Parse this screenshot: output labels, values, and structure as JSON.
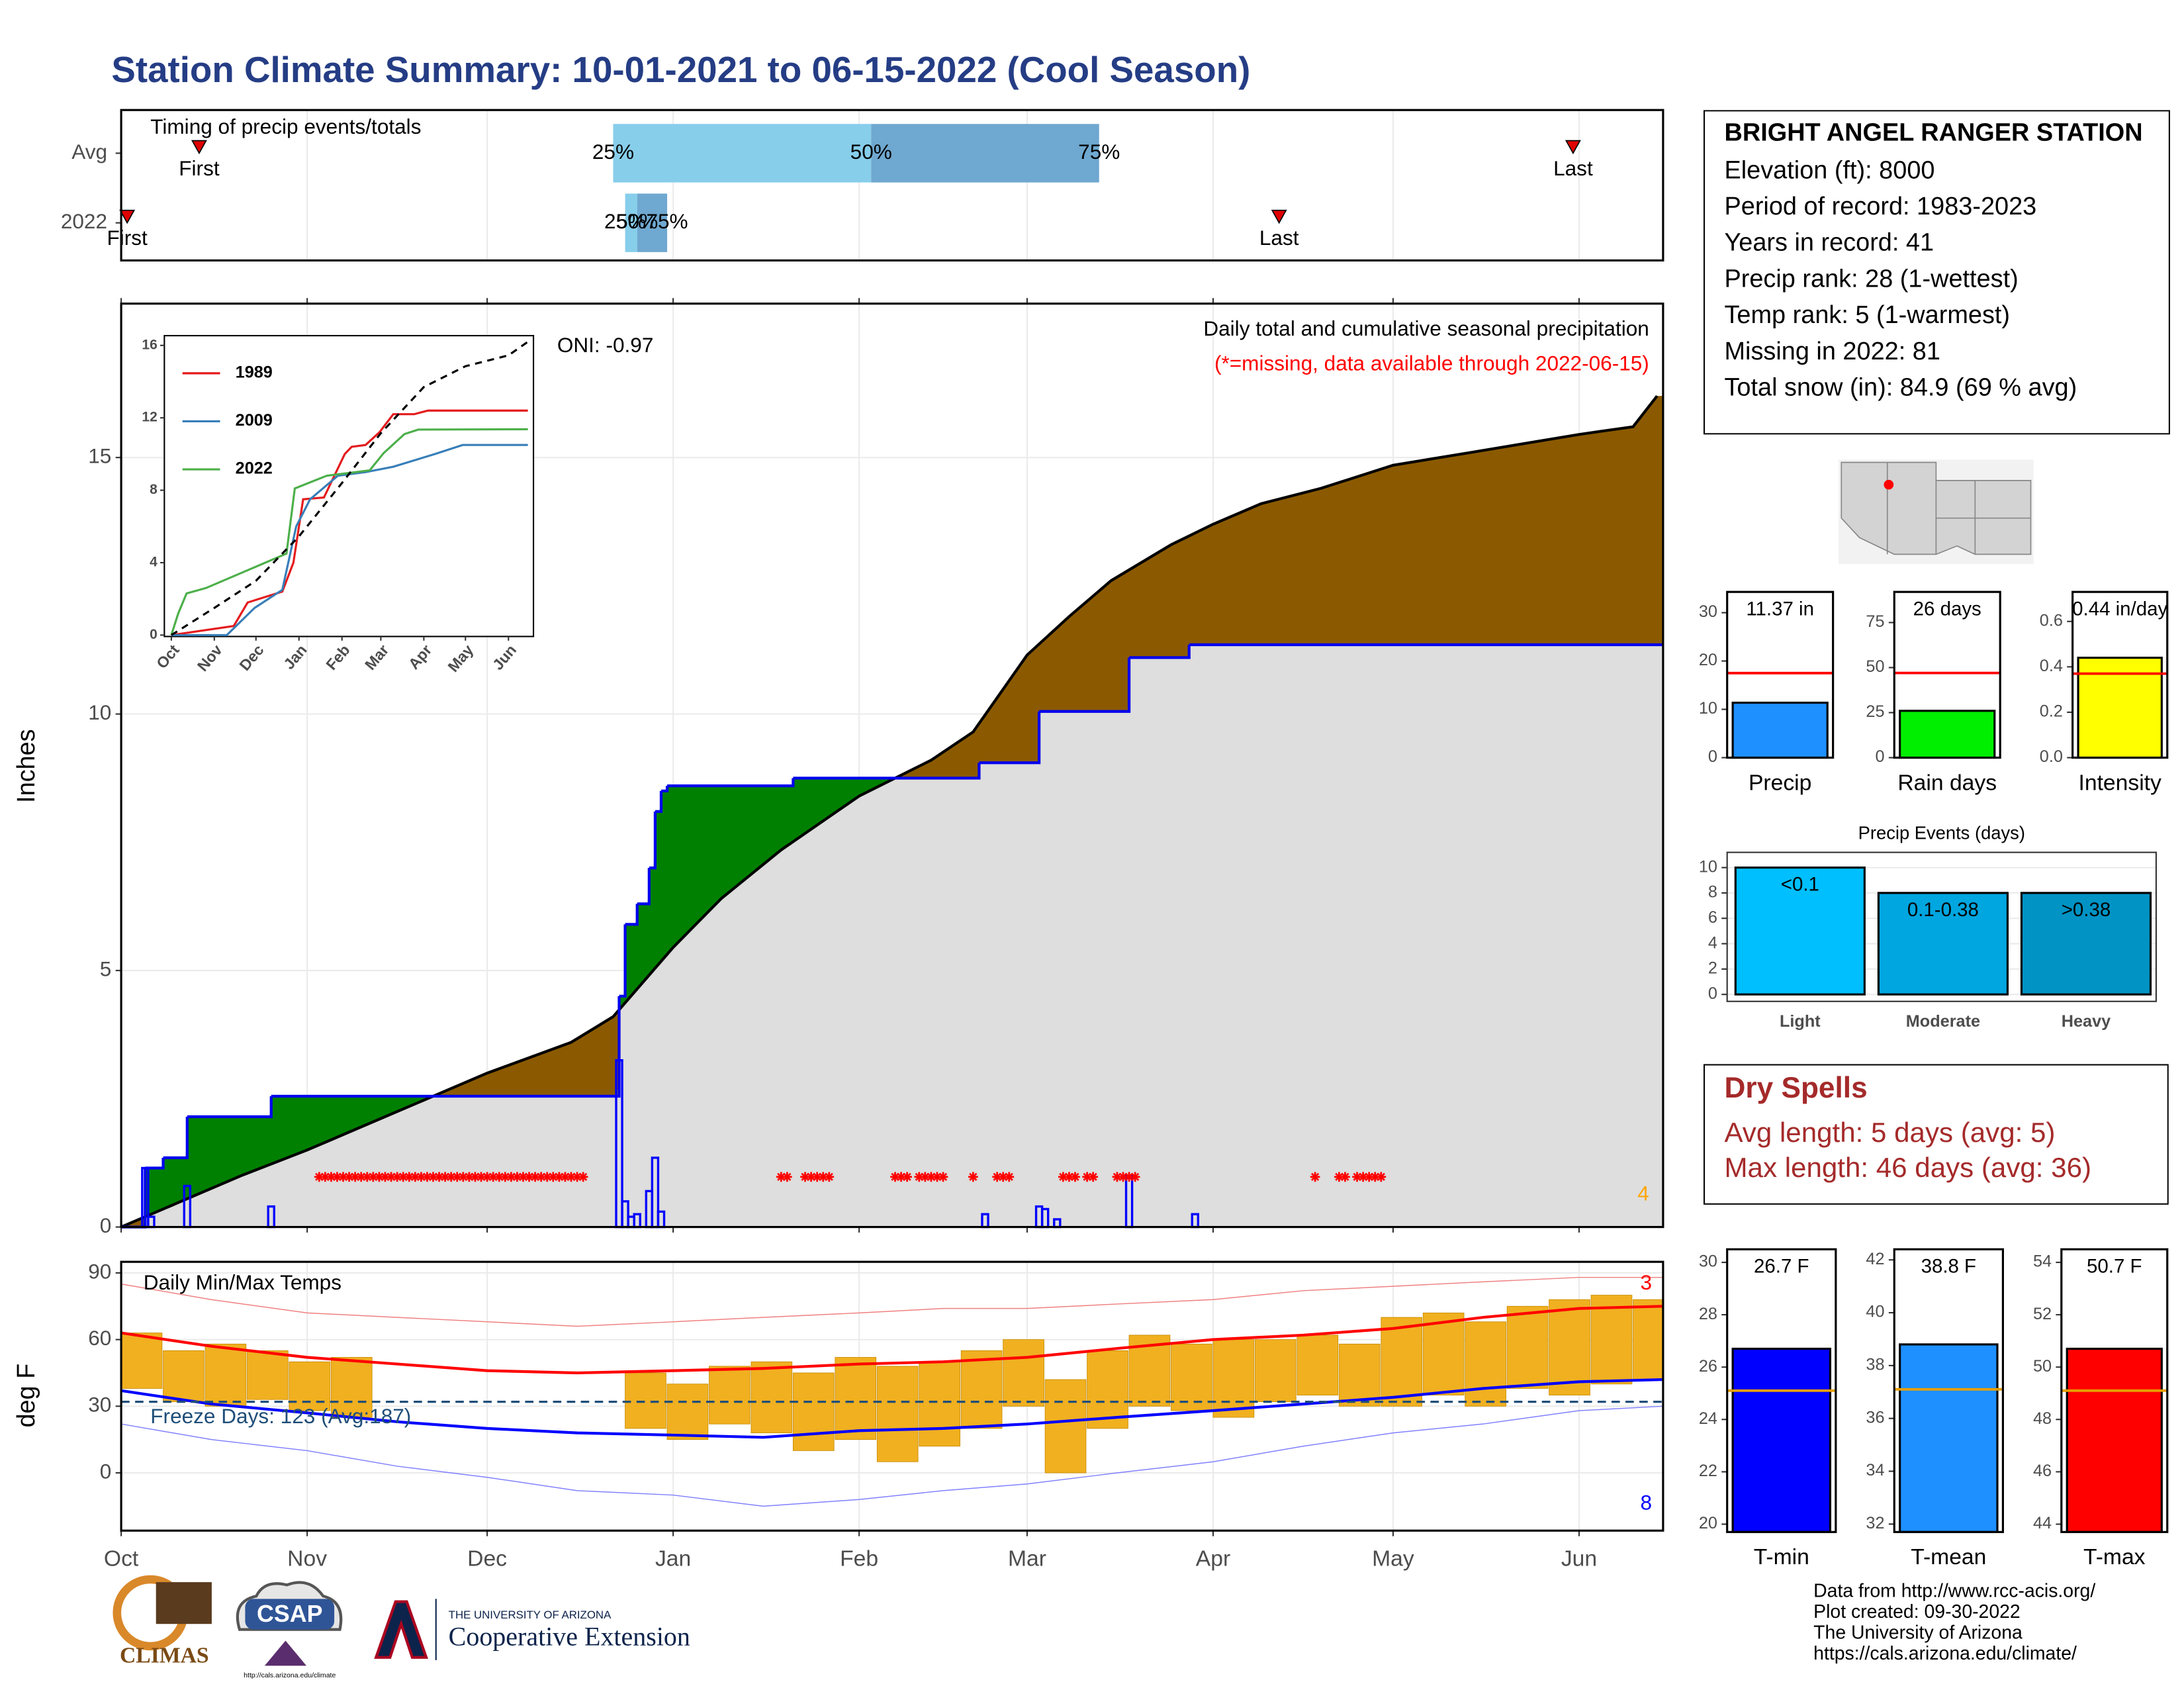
{
  "title": "Station Climate Summary: 10-01-2021 to 06-15-2022 (Cool Season)",
  "chart_data": [
    {
      "type": "timing",
      "title": "Timing of precip events/totals",
      "categories": [
        "Avg",
        "2022"
      ],
      "first": [
        13,
        1
      ],
      "last": [
        242,
        193
      ],
      "q25": [
        82,
        84
      ],
      "q50": [
        125,
        86
      ],
      "q75": [
        163,
        91
      ],
      "first_label": "First",
      "last_label": "Last",
      "quartile_labels": [
        "25%",
        "50%",
        "75%"
      ],
      "xlim": [
        0,
        257
      ],
      "low_color": "#87ceeb",
      "high_color": "#6fa8d0",
      "marker_color": "#e00000"
    },
    {
      "type": "cumulative",
      "y_label": "Inches",
      "annotations": [
        "Daily total and cumulative seasonal precipitation",
        "(*=missing, data available through 2022-06-15)",
        "ONI: -0.97"
      ],
      "corner_count": 4,
      "xlim": [
        0,
        257
      ],
      "xticks": [
        0,
        31,
        61,
        92,
        123,
        151,
        182,
        212,
        243
      ],
      "ylim": [
        0,
        18
      ],
      "yticks": [
        0,
        5,
        10,
        15
      ],
      "grid": true,
      "series": [
        {
          "color": "#000000",
          "x": [
            0,
            10,
            20,
            31,
            45,
            61,
            75,
            82,
            92,
            100,
            110,
            123,
            135,
            142,
            151,
            158,
            165,
            175,
            182,
            190,
            200,
            212,
            225,
            243,
            252,
            256
          ],
          "values": [
            0,
            0.5,
            1.0,
            1.5,
            2.2,
            3.0,
            3.6,
            4.1,
            5.45,
            6.4,
            7.35,
            8.4,
            9.1,
            9.65,
            11.15,
            11.9,
            12.6,
            13.3,
            13.7,
            14.1,
            14.4,
            14.85,
            15.1,
            15.45,
            15.6,
            16.2
          ]
        },
        {
          "color": "#0000ee",
          "x": [
            0,
            4,
            7,
            11,
            25,
            83,
            84,
            86,
            88,
            89,
            90,
            91,
            112,
            143,
            153,
            168,
            178
          ],
          "values": [
            0,
            1.15,
            1.35,
            2.15,
            2.55,
            4.5,
            5.9,
            6.3,
            7.0,
            8.1,
            8.5,
            8.6,
            8.75,
            9.05,
            10.05,
            11.1,
            11.35
          ]
        }
      ],
      "daily": {
        "color": "#0000ff",
        "x": [
          4,
          5,
          11,
          25,
          83,
          84,
          85,
          86,
          88,
          89,
          90,
          144,
          153,
          154,
          156,
          168,
          179
        ],
        "values": [
          1.15,
          0.2,
          0.8,
          0.4,
          3.25,
          0.5,
          0.2,
          0.25,
          0.7,
          1.35,
          0.3,
          0.25,
          0.4,
          0.35,
          0.15,
          1.0,
          0.25
        ]
      },
      "missing_days": [
        33,
        34,
        35,
        36,
        37,
        38,
        39,
        40,
        41,
        42,
        43,
        44,
        45,
        46,
        47,
        48,
        49,
        50,
        51,
        52,
        53,
        54,
        55,
        56,
        57,
        58,
        59,
        60,
        61,
        62,
        63,
        64,
        65,
        66,
        67,
        68,
        69,
        70,
        71,
        72,
        73,
        74,
        75,
        76,
        77,
        110,
        111,
        114,
        115,
        116,
        117,
        118,
        129,
        130,
        131,
        133,
        134,
        135,
        136,
        137,
        142,
        146,
        147,
        148,
        157,
        158,
        159,
        161,
        162,
        166,
        167,
        168,
        169,
        199,
        203,
        204,
        206,
        207,
        208,
        209,
        210
      ],
      "above_color": "#008000",
      "below_color": "#8b5a00",
      "base_color": "#dedede",
      "missing_color": "#ff0000"
    },
    {
      "type": "line",
      "xlim": [
        0,
        257
      ],
      "xticks": [
        {
          "value": 0,
          "label": "Oct"
        },
        {
          "value": 31,
          "label": "Nov"
        },
        {
          "value": 61,
          "label": "Dec"
        },
        {
          "value": 92,
          "label": "Jan"
        },
        {
          "value": 123,
          "label": "Feb"
        },
        {
          "value": 151,
          "label": "Mar"
        },
        {
          "value": 182,
          "label": "Apr"
        },
        {
          "value": 212,
          "label": "May"
        },
        {
          "value": 243,
          "label": "Jun"
        }
      ],
      "ylim": [
        0,
        16.5
      ],
      "yticks": [
        0,
        4,
        8,
        12,
        16
      ],
      "series": [
        {
          "name": "1989",
          "color": "#e41a1c",
          "x": [
            0,
            45,
            55,
            80,
            88,
            95,
            110,
            125,
            130,
            140,
            150,
            160,
            175,
            185,
            257
          ],
          "values": [
            0,
            0.5,
            1.8,
            2.4,
            4,
            7.5,
            7.6,
            10,
            10.4,
            10.5,
            11.2,
            12.2,
            12.2,
            12.4,
            12.4
          ]
        },
        {
          "name": "2009",
          "color": "#377eb8",
          "x": [
            0,
            40,
            60,
            80,
            90,
            100,
            120,
            140,
            160,
            190,
            210,
            257
          ],
          "values": [
            0,
            0,
            1.5,
            2.5,
            6,
            7.5,
            8.8,
            9,
            9.3,
            10,
            10.5,
            10.5
          ]
        },
        {
          "name": "2022",
          "color": "#4daf4a",
          "x": [
            0,
            5,
            11,
            25,
            83,
            89,
            112,
            143,
            153,
            168,
            178,
            257
          ],
          "values": [
            0,
            1.2,
            2.3,
            2.6,
            4.5,
            8.1,
            8.8,
            9.1,
            10.05,
            11.1,
            11.35,
            11.37
          ]
        },
        {
          "color": "#000000",
          "dashed": true,
          "x": [
            0,
            31,
            61,
            92,
            123,
            151,
            182,
            212,
            243,
            257
          ],
          "values": [
            0,
            1.5,
            3,
            5.45,
            8.4,
            11.15,
            13.7,
            14.85,
            15.45,
            16.2
          ]
        }
      ]
    },
    {
      "type": "temperature",
      "title": "Daily Min/Max Temps",
      "y_label": "deg F",
      "annotation": "Freeze Days: 123 (Avg:187)",
      "record_high_count": 3,
      "record_low_count": 8,
      "freeze_line": 32,
      "xlim": [
        0,
        257
      ],
      "xticks": [
        {
          "value": 0,
          "label": "Oct"
        },
        {
          "value": 31,
          "label": "Nov"
        },
        {
          "value": 61,
          "label": "Dec"
        },
        {
          "value": 92,
          "label": "Jan"
        },
        {
          "value": 123,
          "label": "Feb"
        },
        {
          "value": 151,
          "label": "Mar"
        },
        {
          "value": 182,
          "label": "Apr"
        },
        {
          "value": 212,
          "label": "May"
        },
        {
          "value": 243,
          "label": "Jun"
        }
      ],
      "ylim": [
        -26,
        95
      ],
      "yticks": [
        0,
        30,
        60,
        90
      ],
      "grid": true,
      "series": [
        {
          "color": "#ff0000",
          "width": 2,
          "x": [
            0,
            15,
            31,
            46,
            61,
            76,
            92,
            107,
            123,
            137,
            151,
            166,
            182,
            197,
            212,
            227,
            243,
            257
          ],
          "values": [
            63,
            57,
            52,
            49,
            46,
            45,
            46,
            47,
            49,
            50,
            52,
            56,
            60,
            62,
            65,
            70,
            74,
            75
          ]
        },
        {
          "color": "#0000ff",
          "width": 2,
          "x": [
            0,
            15,
            31,
            46,
            61,
            76,
            92,
            107,
            123,
            137,
            151,
            166,
            182,
            197,
            212,
            227,
            243,
            257
          ],
          "values": [
            37,
            31,
            27,
            23,
            20,
            18,
            17,
            16,
            19,
            20,
            22,
            25,
            28,
            31,
            34,
            38,
            41,
            42
          ]
        },
        {
          "color": "#f08080",
          "width": 0.7,
          "x": [
            0,
            15,
            31,
            46,
            61,
            76,
            92,
            107,
            123,
            137,
            151,
            166,
            182,
            197,
            212,
            227,
            243,
            257
          ],
          "values": [
            85,
            78,
            72,
            70,
            68,
            66,
            68,
            70,
            72,
            74,
            74,
            76,
            78,
            82,
            84,
            86,
            88,
            88
          ]
        },
        {
          "color": "#8080ff",
          "width": 0.7,
          "x": [
            0,
            15,
            31,
            46,
            61,
            76,
            92,
            107,
            123,
            137,
            151,
            166,
            182,
            197,
            212,
            227,
            243,
            257
          ],
          "values": [
            22,
            15,
            10,
            3,
            -2,
            -8,
            -10,
            -15,
            -12,
            -8,
            -5,
            0,
            5,
            12,
            18,
            22,
            28,
            30
          ]
        }
      ],
      "bars": {
        "color": "#f0b020",
        "width_days": 7,
        "x": [
          0,
          7,
          14,
          21,
          28,
          35,
          84,
          91,
          98,
          105,
          112,
          119,
          126,
          133,
          140,
          147,
          154,
          161,
          168,
          175,
          182,
          189,
          196,
          203,
          210,
          217,
          224,
          231,
          238,
          245,
          252
        ],
        "min": [
          38,
          32,
          30,
          33,
          28,
          25,
          20,
          15,
          22,
          18,
          10,
          15,
          5,
          12,
          20,
          30,
          0,
          20,
          30,
          28,
          25,
          32,
          35,
          30,
          30,
          35,
          30,
          38,
          35,
          40,
          42
        ],
        "max": [
          63,
          55,
          58,
          55,
          50,
          52,
          45,
          40,
          48,
          50,
          45,
          52,
          48,
          50,
          55,
          60,
          42,
          55,
          62,
          58,
          60,
          60,
          62,
          58,
          70,
          72,
          68,
          75,
          78,
          80,
          78
        ]
      }
    },
    {
      "type": "gauge",
      "title": "Precip",
      "value": 11.37,
      "value_label": "11.37 in",
      "average": 17.5,
      "color": "#1e90ff",
      "average_color": "#ff0000",
      "ylim": [
        0,
        34.3
      ],
      "yticks": [
        0,
        10,
        20,
        30
      ]
    },
    {
      "type": "gauge",
      "title": "Rain days",
      "value": 26,
      "value_label": "26 days",
      "average": 47,
      "color": "#00ee00",
      "average_color": "#ff0000",
      "ylim": [
        0,
        92
      ],
      "yticks": [
        0,
        25,
        50,
        75
      ]
    },
    {
      "type": "gauge",
      "title": "Intensity",
      "value": 0.44,
      "value_label": "0.44 in/day",
      "average": 0.37,
      "color": "#ffff00",
      "average_color": "#ff0000",
      "ylim": [
        0,
        0.73
      ],
      "yticks": [
        {
          "value": 0,
          "label": "0.0"
        },
        0.2,
        0.4,
        0.6
      ]
    },
    {
      "type": "bar",
      "title": "Precip Events (days)",
      "categories": [
        "Light",
        "Moderate",
        "Heavy"
      ],
      "values": [
        10,
        8,
        8
      ],
      "range_labels": [
        "<0.1",
        "0.1-0.38",
        ">0.38"
      ],
      "colors": [
        "#00bfff",
        "#00a6e0",
        "#0093c4"
      ],
      "ylim": [
        0,
        11.2
      ],
      "yticks": [
        0,
        2,
        4,
        6,
        8,
        10
      ],
      "grid": true
    },
    {
      "type": "gauge",
      "title": "T-min",
      "value": 26.7,
      "value_label": "26.7 F",
      "average": 25.1,
      "color": "#0000ff",
      "average_color": "#e69f00",
      "ylim": [
        19.7,
        30.5
      ],
      "yticks": [
        20,
        22,
        24,
        26,
        28,
        30
      ]
    },
    {
      "type": "gauge",
      "title": "T-mean",
      "value": 38.8,
      "value_label": "38.8 F",
      "average": 37.1,
      "color": "#1e90ff",
      "average_color": "#e69f00",
      "ylim": [
        31.7,
        42.4
      ],
      "yticks": [
        32,
        34,
        36,
        38,
        40,
        42
      ]
    },
    {
      "type": "gauge",
      "title": "T-max",
      "value": 50.7,
      "value_label": "50.7 F",
      "average": 49.1,
      "color": "#ff0000",
      "average_color": "#e69f00",
      "ylim": [
        43.7,
        54.5
      ],
      "yticks": [
        44,
        46,
        48,
        50,
        52,
        54
      ]
    }
  ],
  "station": {
    "name": "BRIGHT ANGEL RANGER STATION",
    "lines": [
      "Elevation (ft): 8000",
      "Period of record: 1983-2023",
      "Years in record: 41",
      "Precip rank: 28 (1-wettest)",
      "Temp rank: 5 (1-warmest)",
      "Missing in 2022: 81",
      "Total snow (in): 84.9 (69 % avg)"
    ]
  },
  "dry_spells": {
    "title": "Dry Spells",
    "lines": [
      "Avg length: 5 days (avg: 5)",
      "Max length: 46 days (avg: 36)"
    ]
  },
  "footer": [
    "Data from http://www.rcc-acis.org/",
    "Plot created: 09-30-2022",
    "The University of Arizona",
    "https://cals.arizona.edu/climate/"
  ],
  "logos": {
    "climas": "CLIMAS",
    "csap": "CSAP",
    "csap_url": "http://cals.arizona.edu/climate",
    "university": "THE UNIVERSITY OF ARIZONA",
    "extension": "Cooperative Extension"
  }
}
